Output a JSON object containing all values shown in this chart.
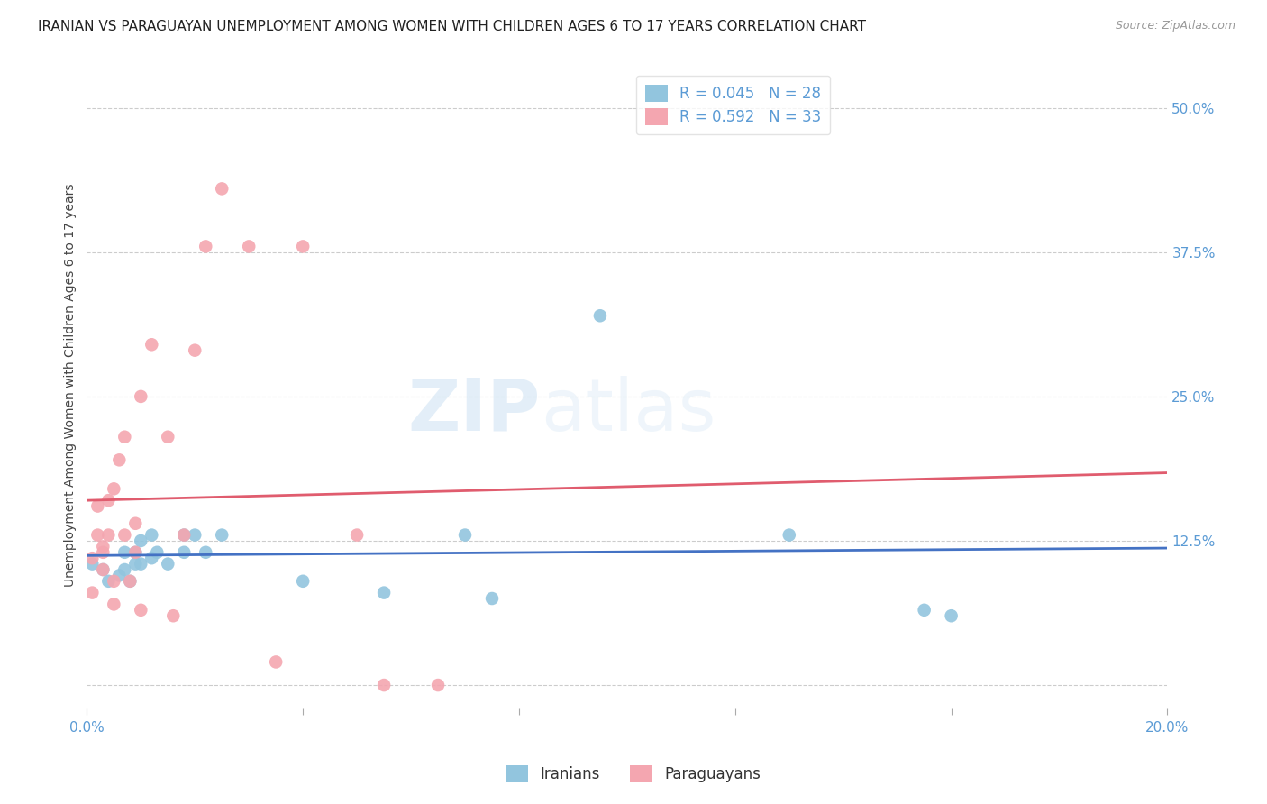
{
  "title": "IRANIAN VS PARAGUAYAN UNEMPLOYMENT AMONG WOMEN WITH CHILDREN AGES 6 TO 17 YEARS CORRELATION CHART",
  "source": "Source: ZipAtlas.com",
  "ylabel": "Unemployment Among Women with Children Ages 6 to 17 years",
  "xlim": [
    0.0,
    0.2
  ],
  "ylim": [
    -0.02,
    0.54
  ],
  "xticks": [
    0.0,
    0.04,
    0.08,
    0.12,
    0.16,
    0.2
  ],
  "xticklabels": [
    "0.0%",
    "",
    "",
    "",
    "",
    "20.0%"
  ],
  "yticks_right": [
    0.125,
    0.25,
    0.375,
    0.5
  ],
  "yticklabels_right": [
    "12.5%",
    "25.0%",
    "37.5%",
    "50.0%"
  ],
  "title_fontsize": 11,
  "source_fontsize": 9,
  "tick_color": "#5b9bd5",
  "grid_color": "#cccccc",
  "watermark_zip": "ZIP",
  "watermark_atlas": "atlas",
  "iranians_color": "#92c5de",
  "paraguayans_color": "#f4a6b0",
  "iranians_line_color": "#4472c4",
  "paraguayans_line_color": "#e05c6e",
  "legend_R_iranian": "R = 0.045",
  "legend_N_iranian": "N = 28",
  "legend_R_paraguayan": "R = 0.592",
  "legend_N_paraguayan": "N = 33",
  "iranians_x": [
    0.001,
    0.003,
    0.004,
    0.006,
    0.007,
    0.007,
    0.008,
    0.009,
    0.009,
    0.01,
    0.01,
    0.012,
    0.012,
    0.013,
    0.015,
    0.018,
    0.018,
    0.02,
    0.022,
    0.025,
    0.04,
    0.055,
    0.07,
    0.075,
    0.095,
    0.13,
    0.155,
    0.16
  ],
  "iranians_y": [
    0.105,
    0.1,
    0.09,
    0.095,
    0.1,
    0.115,
    0.09,
    0.105,
    0.115,
    0.105,
    0.125,
    0.11,
    0.13,
    0.115,
    0.105,
    0.115,
    0.13,
    0.13,
    0.115,
    0.13,
    0.09,
    0.08,
    0.13,
    0.075,
    0.32,
    0.13,
    0.065,
    0.06
  ],
  "paraguayans_x": [
    0.001,
    0.001,
    0.002,
    0.002,
    0.003,
    0.003,
    0.003,
    0.004,
    0.004,
    0.005,
    0.005,
    0.005,
    0.006,
    0.007,
    0.007,
    0.008,
    0.009,
    0.009,
    0.01,
    0.01,
    0.012,
    0.015,
    0.016,
    0.018,
    0.02,
    0.022,
    0.025,
    0.03,
    0.035,
    0.04,
    0.05,
    0.055,
    0.065
  ],
  "paraguayans_y": [
    0.08,
    0.11,
    0.13,
    0.155,
    0.1,
    0.115,
    0.12,
    0.13,
    0.16,
    0.07,
    0.09,
    0.17,
    0.195,
    0.13,
    0.215,
    0.09,
    0.115,
    0.14,
    0.065,
    0.25,
    0.295,
    0.215,
    0.06,
    0.13,
    0.29,
    0.38,
    0.43,
    0.38,
    0.02,
    0.38,
    0.13,
    0.0,
    0.0
  ],
  "background_color": "#ffffff",
  "iranians_line_x": [
    0.0,
    0.2
  ],
  "paraguayans_line_x": [
    0.0,
    0.065
  ]
}
